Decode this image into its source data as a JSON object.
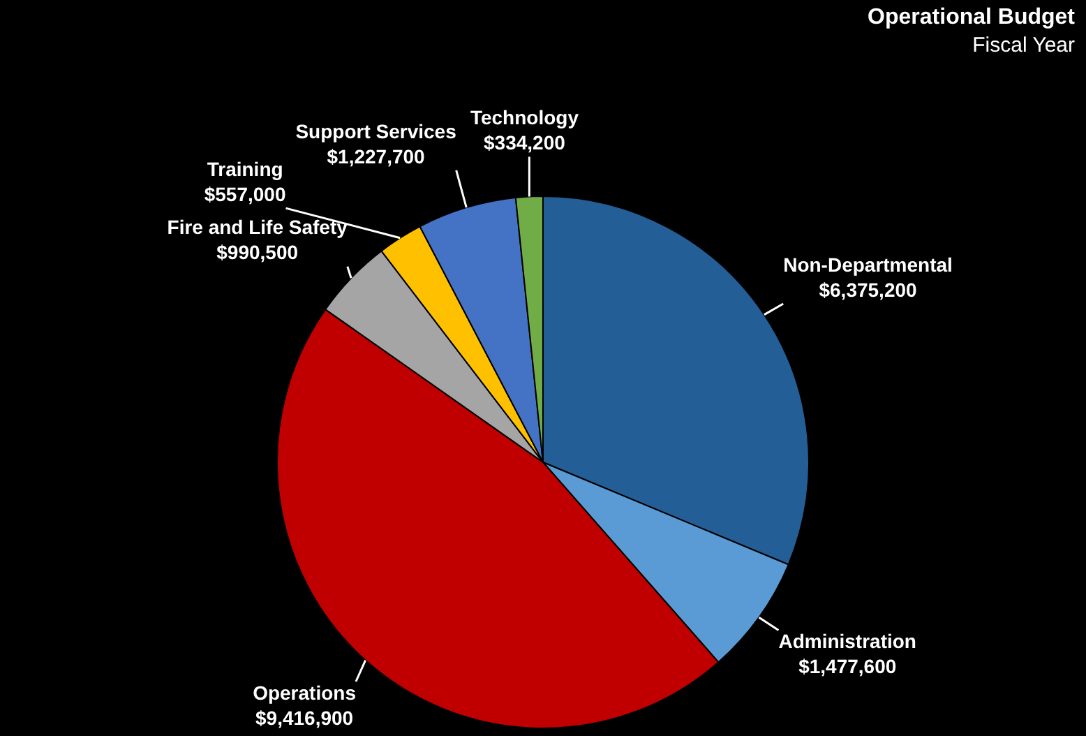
{
  "chart_data": {
    "type": "pie",
    "title": "Operational Budget",
    "subtitle": "Fiscal Year",
    "categories": [
      "Non-Departmental",
      "Administration",
      "Operations",
      "Fire and Life Safety",
      "Training",
      "Support Services",
      "Technology"
    ],
    "values": [
      6375200,
      1477600,
      9416900,
      990500,
      557000,
      1227700,
      334200
    ],
    "value_labels": [
      "$6,375,200",
      "$1,477,600",
      "$9,416,900",
      "$990,500",
      "$557,000",
      "$1,227,700",
      "$334,200"
    ],
    "colors": [
      "#245e96",
      "#5b9bd5",
      "#c00000",
      "#a5a5a5",
      "#ffc000",
      "#4472c4",
      "#70ad47"
    ],
    "legend": false
  }
}
